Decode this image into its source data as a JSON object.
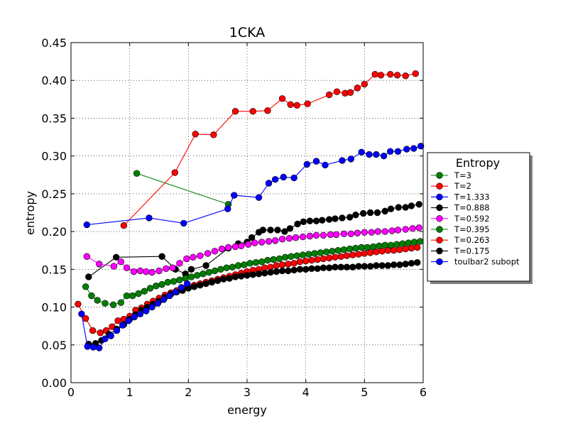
{
  "chart_data": {
    "type": "line",
    "title": "1CKA",
    "xlabel": "energy",
    "ylabel": "entropy",
    "xlim": [
      0,
      6
    ],
    "ylim": [
      0,
      0.45
    ],
    "xticks": [
      "0",
      "1",
      "2",
      "3",
      "4",
      "5",
      "6"
    ],
    "yticks": [
      "0.00",
      "0.05",
      "0.10",
      "0.15",
      "0.20",
      "0.25",
      "0.30",
      "0.35",
      "0.40",
      "0.45"
    ],
    "grid": true,
    "legend": {
      "title": "Entropy",
      "placement": "outside-right"
    },
    "series": [
      {
        "name": "T=3",
        "color": "#008000",
        "x": [
          1.12,
          2.68
        ],
        "y": [
          0.277,
          0.236
        ]
      },
      {
        "name": "T=2",
        "color": "#ff0000",
        "x": [
          0.9,
          1.77,
          2.12,
          2.43,
          2.8,
          3.1,
          3.35,
          3.6,
          3.74,
          3.85,
          4.03,
          4.4,
          4.53,
          4.67,
          4.76,
          4.88,
          5.0,
          5.18,
          5.28,
          5.44,
          5.56,
          5.7,
          5.87
        ],
        "y": [
          0.208,
          0.278,
          0.329,
          0.328,
          0.359,
          0.359,
          0.36,
          0.376,
          0.368,
          0.367,
          0.369,
          0.381,
          0.385,
          0.383,
          0.384,
          0.39,
          0.395,
          0.408,
          0.407,
          0.408,
          0.407,
          0.406,
          0.409
        ]
      },
      {
        "name": "T=1.333",
        "color": "#0000ff",
        "x": [
          0.27,
          1.33,
          1.92,
          2.67,
          2.78,
          3.2,
          3.37,
          3.48,
          3.62,
          3.8,
          4.02,
          4.18,
          4.33,
          4.62,
          4.77,
          4.95,
          5.08,
          5.2,
          5.33,
          5.44,
          5.57,
          5.72,
          5.84,
          5.96
        ],
        "y": [
          0.209,
          0.218,
          0.211,
          0.23,
          0.248,
          0.245,
          0.264,
          0.269,
          0.272,
          0.271,
          0.289,
          0.293,
          0.288,
          0.294,
          0.296,
          0.305,
          0.302,
          0.302,
          0.3,
          0.306,
          0.306,
          0.309,
          0.31,
          0.313
        ]
      },
      {
        "name": "T=0.888",
        "color": "#000000",
        "x": [
          0.3,
          0.77,
          1.55,
          1.78,
          1.95,
          2.05,
          2.3,
          2.68,
          2.85,
          3.0,
          3.08,
          3.2,
          3.27,
          3.4,
          3.52,
          3.64,
          3.73,
          3.86,
          3.96,
          4.07,
          4.18,
          4.28,
          4.4,
          4.5,
          4.62,
          4.75,
          4.85,
          4.98,
          5.1,
          5.22,
          5.35,
          5.45,
          5.58,
          5.7,
          5.8,
          5.93
        ],
        "y": [
          0.14,
          0.166,
          0.167,
          0.15,
          0.144,
          0.15,
          0.155,
          0.178,
          0.184,
          0.186,
          0.192,
          0.199,
          0.202,
          0.202,
          0.202,
          0.2,
          0.204,
          0.21,
          0.213,
          0.214,
          0.214,
          0.215,
          0.216,
          0.217,
          0.218,
          0.219,
          0.222,
          0.224,
          0.225,
          0.225,
          0.227,
          0.23,
          0.232,
          0.232,
          0.234,
          0.236
        ]
      },
      {
        "name": "T=0.592",
        "color": "#ff00ff",
        "x": [
          0.27,
          0.48,
          0.73,
          0.85,
          0.95,
          1.07,
          1.18,
          1.28,
          1.38,
          1.5,
          1.62,
          1.73,
          1.85,
          1.97,
          2.08,
          2.2,
          2.33,
          2.45,
          2.57,
          2.68,
          2.8,
          2.9,
          3.02,
          3.13,
          3.25,
          3.37,
          3.48,
          3.6,
          3.72,
          3.83,
          3.95,
          4.07,
          4.18,
          4.3,
          4.42,
          4.52,
          4.65,
          4.77,
          4.88,
          5.0,
          5.12,
          5.23,
          5.35,
          5.47,
          5.57,
          5.7,
          5.82,
          5.93
        ],
        "y": [
          0.167,
          0.157,
          0.154,
          0.16,
          0.152,
          0.147,
          0.148,
          0.147,
          0.146,
          0.148,
          0.151,
          0.152,
          0.158,
          0.164,
          0.166,
          0.168,
          0.171,
          0.174,
          0.177,
          0.179,
          0.18,
          0.181,
          0.183,
          0.185,
          0.186,
          0.187,
          0.188,
          0.19,
          0.191,
          0.192,
          0.193,
          0.194,
          0.195,
          0.195,
          0.196,
          0.196,
          0.197,
          0.197,
          0.198,
          0.199,
          0.199,
          0.2,
          0.2,
          0.201,
          0.202,
          0.203,
          0.204,
          0.205
        ]
      },
      {
        "name": "T=0.395",
        "color": "#008000",
        "x": [
          0.25,
          0.35,
          0.45,
          0.58,
          0.72,
          0.85,
          0.95,
          1.05,
          1.15,
          1.25,
          1.35,
          1.45,
          1.55,
          1.65,
          1.75,
          1.85,
          1.95,
          2.05,
          2.15,
          2.25,
          2.35,
          2.45,
          2.55,
          2.65,
          2.75,
          2.85,
          2.95,
          3.05,
          3.15,
          3.25,
          3.35,
          3.45,
          3.55,
          3.65,
          3.75,
          3.85,
          3.95,
          4.05,
          4.15,
          4.25,
          4.35,
          4.45,
          4.55,
          4.65,
          4.75,
          4.85,
          4.95,
          5.05,
          5.15,
          5.25,
          5.35,
          5.45,
          5.55,
          5.65,
          5.75,
          5.85,
          5.95
        ],
        "y": [
          0.127,
          0.115,
          0.109,
          0.105,
          0.103,
          0.106,
          0.115,
          0.115,
          0.118,
          0.121,
          0.125,
          0.128,
          0.13,
          0.133,
          0.134,
          0.136,
          0.138,
          0.14,
          0.142,
          0.144,
          0.146,
          0.148,
          0.15,
          0.152,
          0.153,
          0.155,
          0.156,
          0.158,
          0.159,
          0.16,
          0.162,
          0.163,
          0.164,
          0.166,
          0.167,
          0.168,
          0.169,
          0.17,
          0.171,
          0.172,
          0.173,
          0.174,
          0.175,
          0.176,
          0.177,
          0.178,
          0.179,
          0.179,
          0.18,
          0.181,
          0.182,
          0.182,
          0.183,
          0.184,
          0.185,
          0.186,
          0.187
        ]
      },
      {
        "name": "T=0.263",
        "color": "#ff0000",
        "x": [
          0.12,
          0.25,
          0.37,
          0.5,
          0.6,
          0.7,
          0.8,
          0.9,
          1.0,
          1.1,
          1.2,
          1.3,
          1.4,
          1.5,
          1.6,
          1.7,
          1.8,
          1.9,
          2.0,
          2.1,
          2.2,
          2.3,
          2.4,
          2.5,
          2.6,
          2.7,
          2.8,
          2.9,
          3.0,
          3.1,
          3.2,
          3.3,
          3.4,
          3.5,
          3.6,
          3.7,
          3.8,
          3.9,
          4.0,
          4.1,
          4.2,
          4.3,
          4.4,
          4.5,
          4.6,
          4.7,
          4.8,
          4.9,
          5.0,
          5.1,
          5.2,
          5.3,
          5.4,
          5.5,
          5.6,
          5.7,
          5.8,
          5.9
        ],
        "y": [
          0.104,
          0.085,
          0.069,
          0.066,
          0.069,
          0.074,
          0.082,
          0.084,
          0.088,
          0.096,
          0.099,
          0.104,
          0.108,
          0.112,
          0.116,
          0.119,
          0.122,
          0.125,
          0.127,
          0.129,
          0.131,
          0.133,
          0.135,
          0.137,
          0.139,
          0.141,
          0.143,
          0.145,
          0.147,
          0.149,
          0.15,
          0.152,
          0.153,
          0.155,
          0.156,
          0.157,
          0.158,
          0.16,
          0.161,
          0.162,
          0.163,
          0.164,
          0.165,
          0.166,
          0.167,
          0.168,
          0.169,
          0.17,
          0.171,
          0.172,
          0.173,
          0.174,
          0.175,
          0.175,
          0.176,
          0.177,
          0.178,
          0.179
        ]
      },
      {
        "name": "T=0.175",
        "color": "#000000",
        "x": [
          0.3,
          0.42,
          0.52,
          0.65,
          0.78,
          0.9,
          1.0,
          1.1,
          1.2,
          1.3,
          1.4,
          1.5,
          1.6,
          1.7,
          1.8,
          1.9,
          2.0,
          2.1,
          2.2,
          2.3,
          2.4,
          2.5,
          2.6,
          2.7,
          2.8,
          2.9,
          3.0,
          3.1,
          3.2,
          3.3,
          3.4,
          3.5,
          3.6,
          3.7,
          3.8,
          3.9,
          4.0,
          4.1,
          4.2,
          4.3,
          4.4,
          4.5,
          4.6,
          4.7,
          4.8,
          4.9,
          5.0,
          5.1,
          5.2,
          5.3,
          5.4,
          5.5,
          5.6,
          5.7,
          5.8,
          5.9
        ],
        "y": [
          0.051,
          0.052,
          0.056,
          0.064,
          0.071,
          0.077,
          0.084,
          0.09,
          0.096,
          0.1,
          0.104,
          0.108,
          0.113,
          0.117,
          0.12,
          0.122,
          0.125,
          0.127,
          0.129,
          0.131,
          0.133,
          0.135,
          0.137,
          0.138,
          0.14,
          0.141,
          0.142,
          0.143,
          0.144,
          0.145,
          0.146,
          0.147,
          0.148,
          0.148,
          0.149,
          0.15,
          0.15,
          0.151,
          0.151,
          0.152,
          0.152,
          0.153,
          0.153,
          0.153,
          0.153,
          0.154,
          0.154,
          0.154,
          0.155,
          0.155,
          0.155,
          0.156,
          0.156,
          0.157,
          0.158,
          0.159
        ]
      },
      {
        "name": "toulbar2 subopt",
        "color": "#0000ff",
        "x": [
          0.18,
          0.28,
          0.38,
          0.48,
          0.58,
          0.68,
          0.78,
          0.88,
          0.98,
          1.08,
          1.18,
          1.28,
          1.38,
          1.48,
          1.58,
          1.68,
          1.78,
          1.88,
          1.98
        ],
        "y": [
          0.091,
          0.048,
          0.047,
          0.046,
          0.058,
          0.062,
          0.069,
          0.076,
          0.082,
          0.087,
          0.091,
          0.095,
          0.1,
          0.105,
          0.11,
          0.115,
          0.12,
          0.126,
          0.131
        ]
      }
    ]
  }
}
